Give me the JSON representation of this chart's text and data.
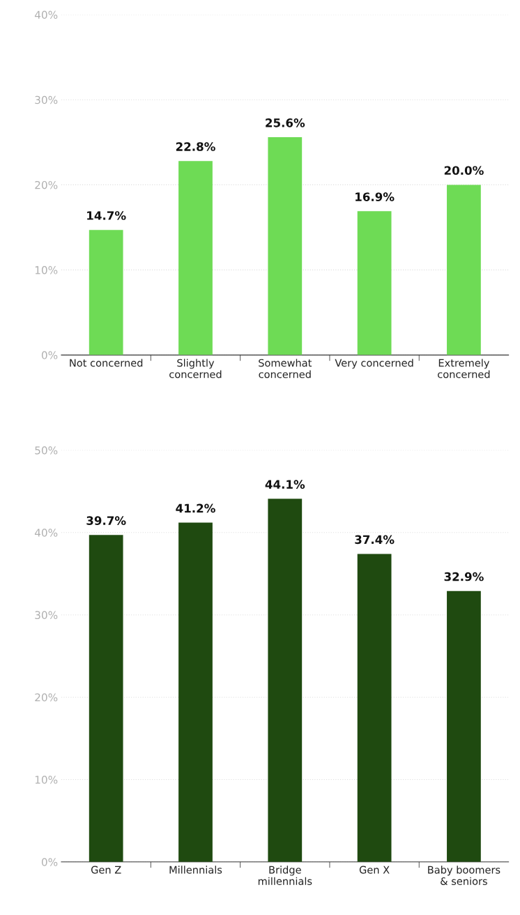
{
  "chart_data": [
    {
      "type": "bar",
      "categories": [
        "Not concerned",
        "Slightly\nconcerned",
        "Somewhat\nconcerned",
        "Very concerned",
        "Extremely\nconcerned"
      ],
      "values": [
        14.7,
        22.8,
        25.6,
        16.9,
        20.0
      ],
      "value_labels": [
        "14.7%",
        "22.8%",
        "25.6%",
        "16.9%",
        "20.0%"
      ],
      "color": "#6edb55",
      "ylim": [
        0,
        40
      ],
      "yticks": [
        {
          "value": 0,
          "label": "0%"
        },
        {
          "value": 10,
          "label": "10%"
        },
        {
          "value": 20,
          "label": "20%"
        },
        {
          "value": 30,
          "label": "30%"
        },
        {
          "value": 40,
          "label": "40%"
        }
      ],
      "grid": "y",
      "legend": false
    },
    {
      "type": "bar",
      "categories": [
        "Gen Z",
        "Millennials",
        "Bridge\nmillennials",
        "Gen X",
        "Baby boomers\n& seniors"
      ],
      "values": [
        39.7,
        41.2,
        44.1,
        37.4,
        32.9
      ],
      "value_labels": [
        "39.7%",
        "41.2%",
        "44.1%",
        "37.4%",
        "32.9%"
      ],
      "color": "#1f4a10",
      "ylim": [
        0,
        50
      ],
      "yticks": [
        {
          "value": 0,
          "label": "0%"
        },
        {
          "value": 10,
          "label": "10%"
        },
        {
          "value": 20,
          "label": "20%"
        },
        {
          "value": 30,
          "label": "30%"
        },
        {
          "value": 40,
          "label": "40%"
        },
        {
          "value": 50,
          "label": "50%"
        }
      ],
      "grid": "y",
      "legend": false
    }
  ]
}
